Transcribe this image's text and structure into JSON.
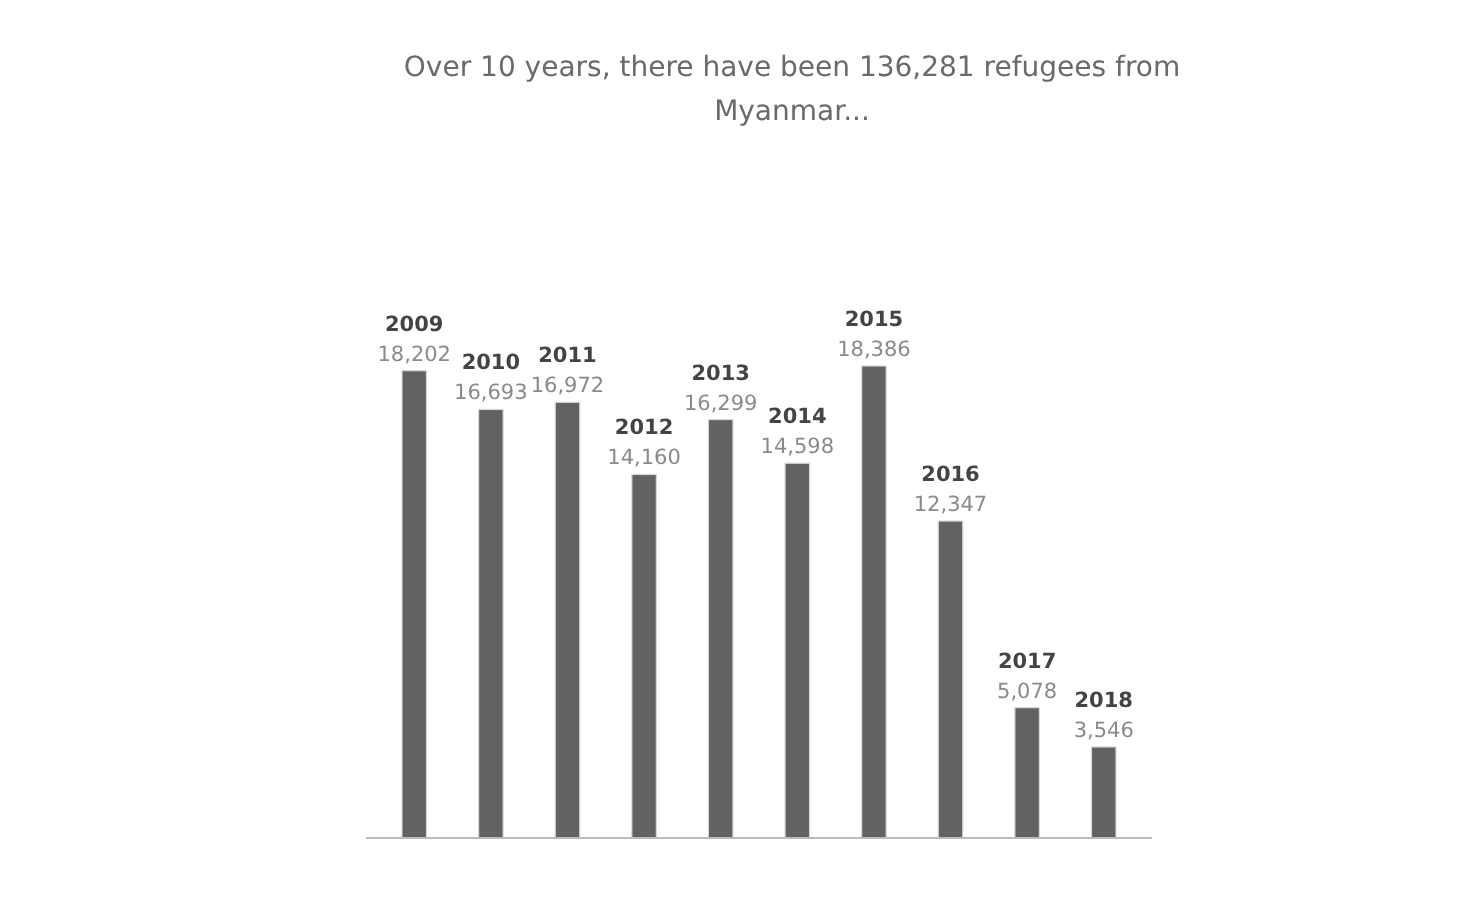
{
  "chart_data": {
    "type": "bar",
    "title": "Over 10 years, there have been 136,281 refugees from Myanmar...",
    "categories": [
      "2009",
      "2010",
      "2011",
      "2012",
      "2013",
      "2014",
      "2015",
      "2016",
      "2017",
      "2018"
    ],
    "values": [
      18202,
      16693,
      16972,
      14160,
      16299,
      14598,
      18386,
      12347,
      5078,
      3546
    ],
    "value_labels": [
      "18,202",
      "16,693",
      "16,972",
      "14,160",
      "16,299",
      "14,598",
      "18,386",
      "12,347",
      "5,078",
      "3,546"
    ],
    "color": "#626262"
  }
}
